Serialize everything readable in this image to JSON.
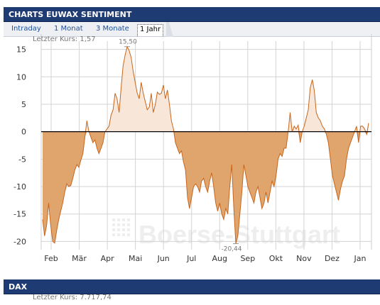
{
  "header": {
    "title": "CHARTS EUWAX SENTIMENT"
  },
  "tabs": [
    {
      "label": "Intraday",
      "active": false
    },
    {
      "label": "1 Monat",
      "active": false
    },
    {
      "label": "3 Monate",
      "active": false
    },
    {
      "label": "1 Jahr",
      "active": true
    }
  ],
  "last_price": "Letzter Kurs: 1,57",
  "watermark": "Boerse-Stuttgart",
  "dax_section": {
    "title": "DAX",
    "last_price": "Letzter Kurs: 7.717,74"
  },
  "colors": {
    "header_bg": "#1f3b73",
    "line": "#c8661c",
    "fill_negative": "#e0a56d",
    "fill_positive": "#f8e7d8",
    "grid": "#d3d3d3"
  },
  "chart_data": {
    "type": "area",
    "yticks": [
      15,
      10,
      5,
      0,
      -5,
      -10,
      -15,
      -20
    ],
    "ylim": [
      -21.5,
      16.5
    ],
    "xticks": [
      "Feb",
      "Mär",
      "Apr",
      "Mai",
      "Jun",
      "Jul",
      "Aug",
      "Sep",
      "Okt",
      "Nov",
      "Dez",
      "Jan"
    ],
    "grid": true,
    "annotations": [
      {
        "text": "15,50",
        "point": "max"
      },
      {
        "text": "-20,44",
        "point": "min"
      }
    ],
    "series": [
      {
        "values": [
          -16,
          -19,
          -17,
          -13,
          -17,
          -20,
          -20.3,
          -18,
          -16,
          -14.5,
          -13,
          -11,
          -9.5,
          -10,
          -9.8,
          -8.5,
          -7,
          -6,
          -6.5,
          -5.2,
          -4,
          -1,
          2,
          0,
          -1,
          -2,
          -1.5,
          -3,
          -4,
          -3,
          -2,
          0,
          0.5,
          1,
          3,
          4,
          7,
          6,
          3.5,
          8,
          12,
          14,
          15.5,
          14.8,
          13.5,
          11,
          9,
          7,
          6,
          9,
          7,
          5.5,
          4,
          4.5,
          7,
          3.5,
          5,
          7.2,
          6.8,
          7,
          8.5,
          6,
          7.6,
          5,
          2,
          0.5,
          -2,
          -3,
          -4,
          -3.5,
          -5.5,
          -7,
          -12,
          -14,
          -12,
          -10,
          -9.5,
          -10,
          -11,
          -9,
          -8.5,
          -10,
          -11,
          -9,
          -7.5,
          -10,
          -13,
          -14.5,
          -13,
          -15,
          -16,
          -14,
          -15,
          -10,
          -6,
          -14,
          -20.4,
          -19,
          -15,
          -11,
          -6,
          -8,
          -10,
          -11,
          -12,
          -13,
          -11,
          -10,
          -12,
          -14,
          -13,
          -11,
          -13,
          -11,
          -9,
          -10,
          -8,
          -5,
          -4,
          -4.5,
          -3,
          -3,
          0,
          3.5,
          0,
          1,
          0.5,
          1.2,
          -2,
          0,
          1,
          2.5,
          4,
          8,
          9.5,
          7.5,
          3.5,
          2.5,
          2,
          1,
          0.5,
          -0.5,
          -2,
          -5,
          -8,
          -9.5,
          -11,
          -12.5,
          -10.5,
          -9,
          -8,
          -5,
          -3,
          -2,
          -1,
          0,
          1,
          -2,
          1,
          1,
          0.5,
          -0.5,
          1.57
        ]
      }
    ]
  }
}
